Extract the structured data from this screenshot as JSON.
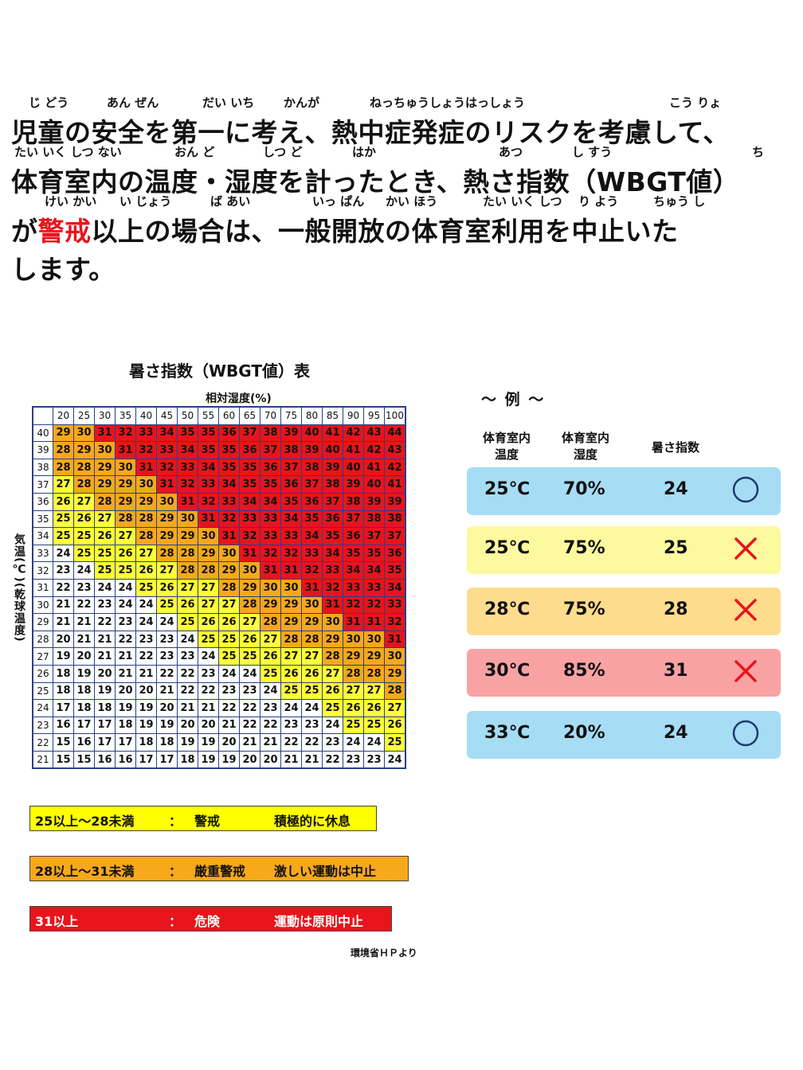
{
  "notice": {
    "lines": [
      {
        "text_before": "児童の安全を第一に考え、熱中症発症のリスクを考慮して、",
        "ruby": [
          "じ どう",
          "あん ぜん",
          "だい いち",
          "かんが",
          "ねっちゅうしょうはっしょう",
          "こう りょ"
        ]
      },
      {
        "text_before": "体育室内の温度・湿度を計ったとき、熱さ指数（WBGT値）",
        "ruby": [
          "たい いく しつ ない",
          "おん ど",
          "しつ ど",
          "はか",
          "あつ",
          "し すう",
          "ち"
        ]
      },
      {
        "text_before": "が",
        "text_warn": "警戒",
        "text_after": "以上の場合は、一般開放の体育室利用を中止いた",
        "ruby": [
          "けい かい",
          "い じょう",
          "ば あい",
          "いっ ぱん",
          "かい ほう",
          "たい いく しつ",
          "り よう",
          "ちゅう し"
        ]
      },
      {
        "text_before": "します。"
      }
    ]
  },
  "table": {
    "title": "暑さ指数（WBGT値）表",
    "humidity_label": "相対湿度(%)",
    "temperature_label": "気温(℃)(乾球温度)",
    "source": "環境省ＨＰより"
  },
  "chart_data": {
    "type": "heatmap",
    "title": "暑さ指数（WBGT値）表",
    "xlabel": "相対湿度(%)",
    "ylabel": "気温(℃)(乾球温度)",
    "x": [
      20,
      25,
      30,
      35,
      40,
      45,
      50,
      55,
      60,
      65,
      70,
      75,
      80,
      85,
      90,
      95,
      100
    ],
    "y": [
      40,
      39,
      38,
      37,
      36,
      35,
      34,
      33,
      32,
      31,
      30,
      29,
      28,
      27,
      26,
      25,
      24,
      23,
      22,
      21
    ],
    "values": [
      [
        29,
        30,
        31,
        32,
        33,
        34,
        35,
        35,
        36,
        37,
        38,
        39,
        40,
        41,
        42,
        43,
        44
      ],
      [
        28,
        29,
        30,
        31,
        32,
        33,
        34,
        35,
        35,
        36,
        37,
        38,
        39,
        40,
        41,
        42,
        43
      ],
      [
        28,
        28,
        29,
        30,
        31,
        32,
        33,
        34,
        35,
        35,
        36,
        37,
        38,
        39,
        40,
        41,
        42
      ],
      [
        27,
        28,
        29,
        29,
        30,
        31,
        32,
        33,
        34,
        35,
        35,
        36,
        37,
        38,
        39,
        40,
        41
      ],
      [
        26,
        27,
        28,
        29,
        29,
        30,
        31,
        32,
        33,
        34,
        34,
        35,
        36,
        37,
        38,
        39,
        39
      ],
      [
        25,
        26,
        27,
        28,
        28,
        29,
        30,
        31,
        32,
        33,
        33,
        34,
        35,
        36,
        37,
        38,
        38
      ],
      [
        25,
        25,
        26,
        27,
        28,
        29,
        29,
        30,
        31,
        32,
        33,
        33,
        34,
        35,
        36,
        37,
        37
      ],
      [
        24,
        25,
        25,
        26,
        27,
        28,
        28,
        29,
        30,
        31,
        32,
        32,
        33,
        34,
        35,
        35,
        36
      ],
      [
        23,
        24,
        25,
        25,
        26,
        27,
        28,
        28,
        29,
        30,
        31,
        31,
        32,
        33,
        34,
        34,
        35
      ],
      [
        22,
        23,
        24,
        24,
        25,
        26,
        27,
        27,
        28,
        29,
        30,
        30,
        31,
        32,
        33,
        33,
        34
      ],
      [
        21,
        22,
        23,
        24,
        24,
        25,
        26,
        27,
        27,
        28,
        29,
        29,
        30,
        31,
        32,
        32,
        33
      ],
      [
        21,
        21,
        22,
        23,
        24,
        24,
        25,
        26,
        26,
        27,
        28,
        29,
        29,
        30,
        31,
        31,
        32
      ],
      [
        20,
        21,
        21,
        22,
        23,
        23,
        24,
        25,
        25,
        26,
        27,
        28,
        28,
        29,
        30,
        30,
        31
      ],
      [
        19,
        20,
        21,
        21,
        22,
        23,
        23,
        24,
        25,
        25,
        26,
        27,
        27,
        28,
        29,
        29,
        30
      ],
      [
        18,
        19,
        20,
        21,
        21,
        22,
        22,
        23,
        24,
        24,
        25,
        26,
        26,
        27,
        28,
        28,
        29
      ],
      [
        18,
        18,
        19,
        20,
        20,
        21,
        22,
        22,
        23,
        23,
        24,
        25,
        25,
        26,
        27,
        27,
        28
      ],
      [
        17,
        18,
        18,
        19,
        19,
        20,
        21,
        21,
        22,
        22,
        23,
        24,
        24,
        25,
        26,
        26,
        27
      ],
      [
        16,
        17,
        17,
        18,
        19,
        19,
        20,
        20,
        21,
        22,
        22,
        23,
        23,
        24,
        25,
        25,
        26
      ],
      [
        15,
        16,
        17,
        17,
        18,
        18,
        19,
        19,
        20,
        21,
        21,
        22,
        22,
        23,
        24,
        24,
        25
      ],
      [
        15,
        15,
        16,
        16,
        17,
        17,
        18,
        19,
        19,
        20,
        20,
        21,
        21,
        22,
        23,
        23,
        24
      ]
    ],
    "color_scale": {
      "below_25": "#ffffff",
      "25_to_28": "#ffff37",
      "28_to_31": "#f7a81b",
      "31_and_above": "#e8141c"
    }
  },
  "legend": [
    {
      "range": "25以上～28未満",
      "sep": "：",
      "level": "警戒",
      "action": "積極的に休息",
      "color": "#ffff00"
    },
    {
      "range": "28以上～31未満",
      "sep": "：",
      "level": "厳重警戒",
      "action": "激しい運動は中止",
      "color": "#f7a81b"
    },
    {
      "range": "31以上",
      "sep": "：",
      "level": "危険",
      "action": "運動は原則中止",
      "color": "#e8141c"
    }
  ],
  "examples": {
    "title": "～ 例 ～",
    "headers": {
      "temp": "体育室内\n温度",
      "humidity": "体育室内\n湿度",
      "index": "暑さ指数"
    },
    "rows": [
      {
        "temp": "25℃",
        "humidity": "70%",
        "index": "24",
        "mark": "circle-icon",
        "color": "#a6dcf4"
      },
      {
        "temp": "25℃",
        "humidity": "75%",
        "index": "25",
        "mark": "cross-icon",
        "color": "#fdf99e"
      },
      {
        "temp": "28℃",
        "humidity": "75%",
        "index": "28",
        "mark": "cross-icon",
        "color": "#fddc8e"
      },
      {
        "temp": "30℃",
        "humidity": "85%",
        "index": "31",
        "mark": "cross-icon",
        "color": "#f9a2a4"
      },
      {
        "temp": "33℃",
        "humidity": "20%",
        "index": "24",
        "mark": "circle-icon",
        "color": "#a6dcf4"
      }
    ],
    "mark_colors": {
      "circle": "#1f3a6e",
      "cross": "#e8141c"
    }
  }
}
